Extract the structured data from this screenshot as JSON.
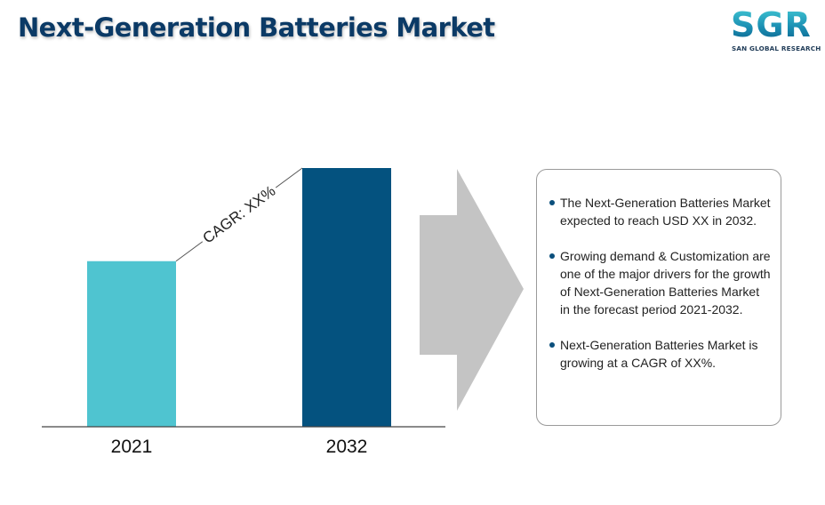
{
  "title": "Next-Generation Batteries Market",
  "logo": {
    "mark": "SGR",
    "sub": "SAN GLOBAL RESEARCH"
  },
  "chart_data": {
    "type": "bar",
    "categories": [
      "2021",
      "2032"
    ],
    "values": [
      0.64,
      1.0
    ],
    "colors": [
      "#4fc4d0",
      "#04527f"
    ],
    "annotation": "CAGR: XX%",
    "ylim": [
      0,
      1
    ],
    "grid": false,
    "axis_color": "#444444"
  },
  "arrow_color": "#c4c4c4",
  "bullets": [
    "The Next-Generation Batteries Market expected to reach USD  XX in 2032.",
    "Growing demand & Customization are one of the major drivers for the growth of Next-Generation Batteries Market in the forecast period 2021-2032.",
    "Next-Generation Batteries Market is growing at a CAGR of XX%."
  ]
}
